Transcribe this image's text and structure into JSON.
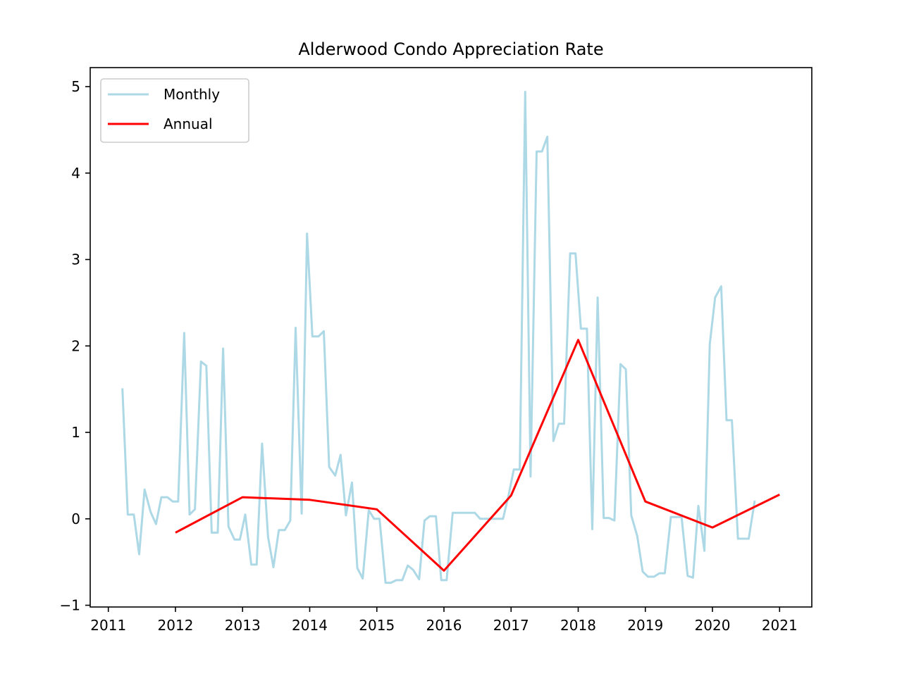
{
  "chart_data": {
    "type": "line",
    "title": "Alderwood Condo Appreciation Rate",
    "xlabel": "",
    "ylabel": "",
    "xlim": [
      2010.73,
      2021.48
    ],
    "ylim": [
      -1.02,
      5.22
    ],
    "x_ticks": [
      2011,
      2012,
      2013,
      2014,
      2015,
      2016,
      2017,
      2018,
      2019,
      2020,
      2021
    ],
    "y_ticks": [
      -1,
      0,
      1,
      2,
      3,
      4,
      5
    ],
    "y_tick_labels": [
      "−1",
      "0",
      "1",
      "2",
      "3",
      "4",
      "5"
    ],
    "grid": false,
    "legend_position": "top-left",
    "series": [
      {
        "name": "Monthly",
        "color": "#add8e6",
        "x": [
          2011.21,
          2011.29,
          2011.38,
          2011.46,
          2011.54,
          2011.63,
          2011.71,
          2011.79,
          2011.88,
          2011.96,
          2012.04,
          2012.13,
          2012.21,
          2012.29,
          2012.38,
          2012.46,
          2012.54,
          2012.63,
          2012.71,
          2012.79,
          2012.88,
          2012.96,
          2013.04,
          2013.13,
          2013.21,
          2013.29,
          2013.38,
          2013.46,
          2013.54,
          2013.63,
          2013.71,
          2013.79,
          2013.88,
          2013.96,
          2014.04,
          2014.13,
          2014.21,
          2014.29,
          2014.38,
          2014.46,
          2014.54,
          2014.63,
          2014.71,
          2014.79,
          2014.88,
          2014.96,
          2015.04,
          2015.13,
          2015.21,
          2015.29,
          2015.38,
          2015.46,
          2015.54,
          2015.63,
          2015.71,
          2015.79,
          2015.88,
          2015.96,
          2016.04,
          2016.13,
          2016.21,
          2016.29,
          2016.38,
          2016.46,
          2016.54,
          2016.63,
          2016.71,
          2016.79,
          2016.88,
          2016.96,
          2017.04,
          2017.13,
          2017.21,
          2017.29,
          2017.38,
          2017.46,
          2017.54,
          2017.63,
          2017.71,
          2017.79,
          2017.88,
          2017.96,
          2018.04,
          2018.13,
          2018.21,
          2018.29,
          2018.38,
          2018.46,
          2018.54,
          2018.63,
          2018.71,
          2018.79,
          2018.88,
          2018.96,
          2019.04,
          2019.13,
          2019.21,
          2019.29,
          2019.38,
          2019.46,
          2019.54,
          2019.63,
          2019.71,
          2019.79,
          2019.88,
          2019.96,
          2020.04,
          2020.13,
          2020.21,
          2020.29,
          2020.38,
          2020.46,
          2020.54,
          2020.63
        ],
        "y": [
          1.51,
          0.05,
          0.05,
          -0.41,
          0.34,
          0.08,
          -0.06,
          0.25,
          0.25,
          0.2,
          0.2,
          2.15,
          0.05,
          0.11,
          1.82,
          1.77,
          -0.16,
          -0.16,
          1.97,
          -0.09,
          -0.24,
          -0.24,
          0.05,
          -0.53,
          -0.53,
          0.87,
          -0.21,
          -0.56,
          -0.13,
          -0.13,
          -0.02,
          2.21,
          0.06,
          3.3,
          2.11,
          2.11,
          2.17,
          0.6,
          0.5,
          0.74,
          0.04,
          0.42,
          -0.57,
          -0.69,
          0.1,
          0.0,
          0.0,
          -0.74,
          -0.74,
          -0.71,
          -0.71,
          -0.54,
          -0.59,
          -0.7,
          -0.02,
          0.03,
          0.03,
          -0.71,
          -0.71,
          0.07,
          0.07,
          0.07,
          0.07,
          0.07,
          0.0,
          0.0,
          0.0,
          0.0,
          0.0,
          0.26,
          0.57,
          0.57,
          4.94,
          0.49,
          4.25,
          4.25,
          4.42,
          0.9,
          1.1,
          1.1,
          3.07,
          3.07,
          2.2,
          2.2,
          -0.12,
          2.56,
          0.01,
          0.01,
          -0.02,
          1.79,
          1.73,
          0.04,
          -0.2,
          -0.61,
          -0.67,
          -0.67,
          -0.63,
          -0.63,
          0.02,
          0.02,
          0.02,
          -0.66,
          -0.68,
          0.15,
          -0.37,
          2.02,
          2.56,
          2.69,
          1.14,
          1.14,
          -0.23,
          -0.23,
          -0.23,
          0.21
        ]
      },
      {
        "name": "Annual",
        "color": "#ff0000",
        "x": [
          2012,
          2013,
          2014,
          2015,
          2016,
          2017,
          2018,
          2019,
          2020,
          2021
        ],
        "y": [
          -0.16,
          0.25,
          0.22,
          0.11,
          -0.6,
          0.27,
          2.07,
          0.2,
          -0.1,
          0.28
        ]
      }
    ]
  }
}
